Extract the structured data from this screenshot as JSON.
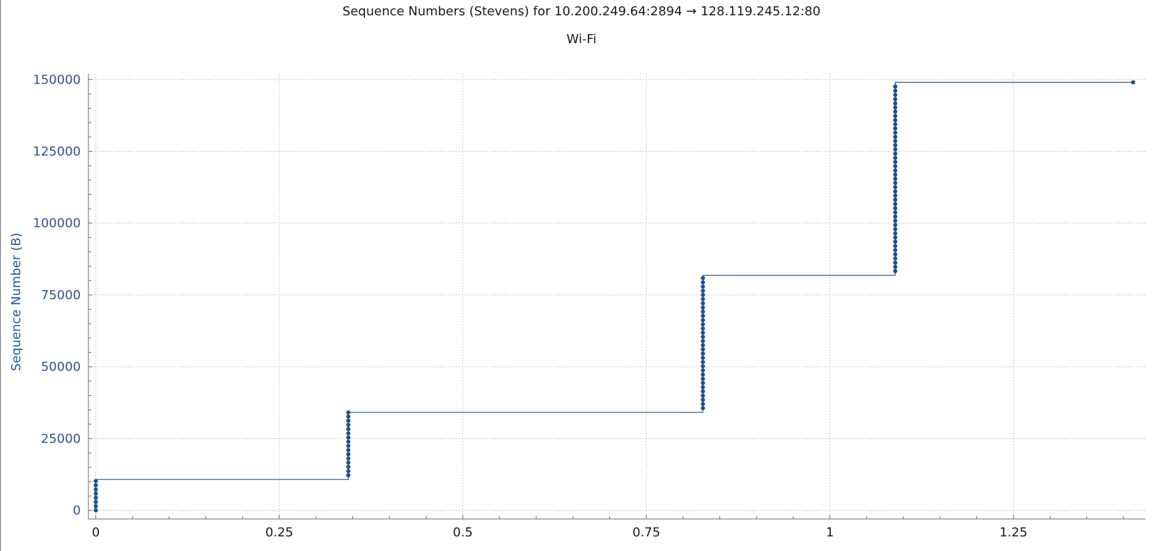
{
  "chart_data": {
    "type": "scatter",
    "title": "Sequence Numbers (Stevens) for 10.200.249.64:2894 → 128.119.245.12:80",
    "subtitle": "Wi-Fi",
    "xlabel": "",
    "ylabel": "Sequence Number (B)",
    "xlim": [
      -0.01,
      1.43
    ],
    "ylim": [
      -3000,
      152000
    ],
    "x_ticks": [
      0,
      0.25,
      0.5,
      0.75,
      1,
      1.25
    ],
    "x_tick_labels": [
      "0",
      "0.25",
      "0.5",
      "0.75",
      "1",
      "1.25"
    ],
    "y_ticks": [
      0,
      25000,
      50000,
      75000,
      100000,
      125000,
      150000
    ],
    "y_tick_labels": [
      "0",
      "25000",
      "50000",
      "75000",
      "100000",
      "125000",
      "150000"
    ],
    "grid": true,
    "colors": {
      "series": "#1f4e8c",
      "line": "#4a6e9e",
      "grid": "#c8c8c8",
      "axis": "#2a5593"
    },
    "segments": [
      {
        "x": 0.0,
        "y_start": 1,
        "y_end": 10769,
        "step": 1460
      },
      {
        "x": 0.344,
        "y_start": 12229,
        "y_end": 34129,
        "step": 1460
      },
      {
        "x": 0.827,
        "y_start": 35589,
        "y_end": 81849,
        "step": 1460
      },
      {
        "x": 1.089,
        "y_start": 83309,
        "y_end": 149000,
        "step": 1460
      },
      {
        "x": 1.413,
        "y_start": 149000,
        "y_end": 149000,
        "step": 1460
      }
    ]
  }
}
